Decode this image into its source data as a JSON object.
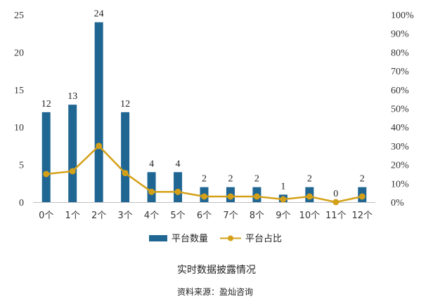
{
  "chart_data": {
    "type": "bar",
    "title": "实时数据披露情况",
    "source": "资料来源：盈灿咨询",
    "categories": [
      "0个",
      "1个",
      "2个",
      "3个",
      "4个",
      "5个",
      "6个",
      "7个",
      "8个",
      "9个",
      "10个",
      "11个",
      "12个"
    ],
    "series": [
      {
        "name": "平台数量",
        "type": "bar",
        "axis": "left",
        "color": "#1f6693",
        "values": [
          12,
          13,
          24,
          12,
          4,
          4,
          2,
          2,
          2,
          1,
          2,
          0,
          2
        ],
        "labels": [
          "12",
          "13",
          "24",
          "12",
          "4",
          "4",
          "2",
          "2",
          "2",
          "1",
          "2",
          "0",
          "2"
        ]
      },
      {
        "name": "平台占比",
        "type": "line",
        "axis": "right",
        "color": "#d4a017",
        "values": [
          15,
          16.5,
          30,
          15.5,
          5.5,
          5.5,
          3,
          3,
          3,
          1.5,
          3,
          0,
          3
        ]
      }
    ],
    "ylim": [
      0,
      25
    ],
    "yticks": [
      "0",
      "5",
      "10",
      "15",
      "20",
      "25"
    ],
    "y2lim": [
      0,
      100
    ],
    "y2ticks": [
      "0%",
      "10%",
      "20%",
      "30%",
      "40%",
      "50%",
      "60%",
      "70%",
      "80%",
      "90%",
      "100%"
    ],
    "grid": false,
    "legend": "bottom"
  }
}
